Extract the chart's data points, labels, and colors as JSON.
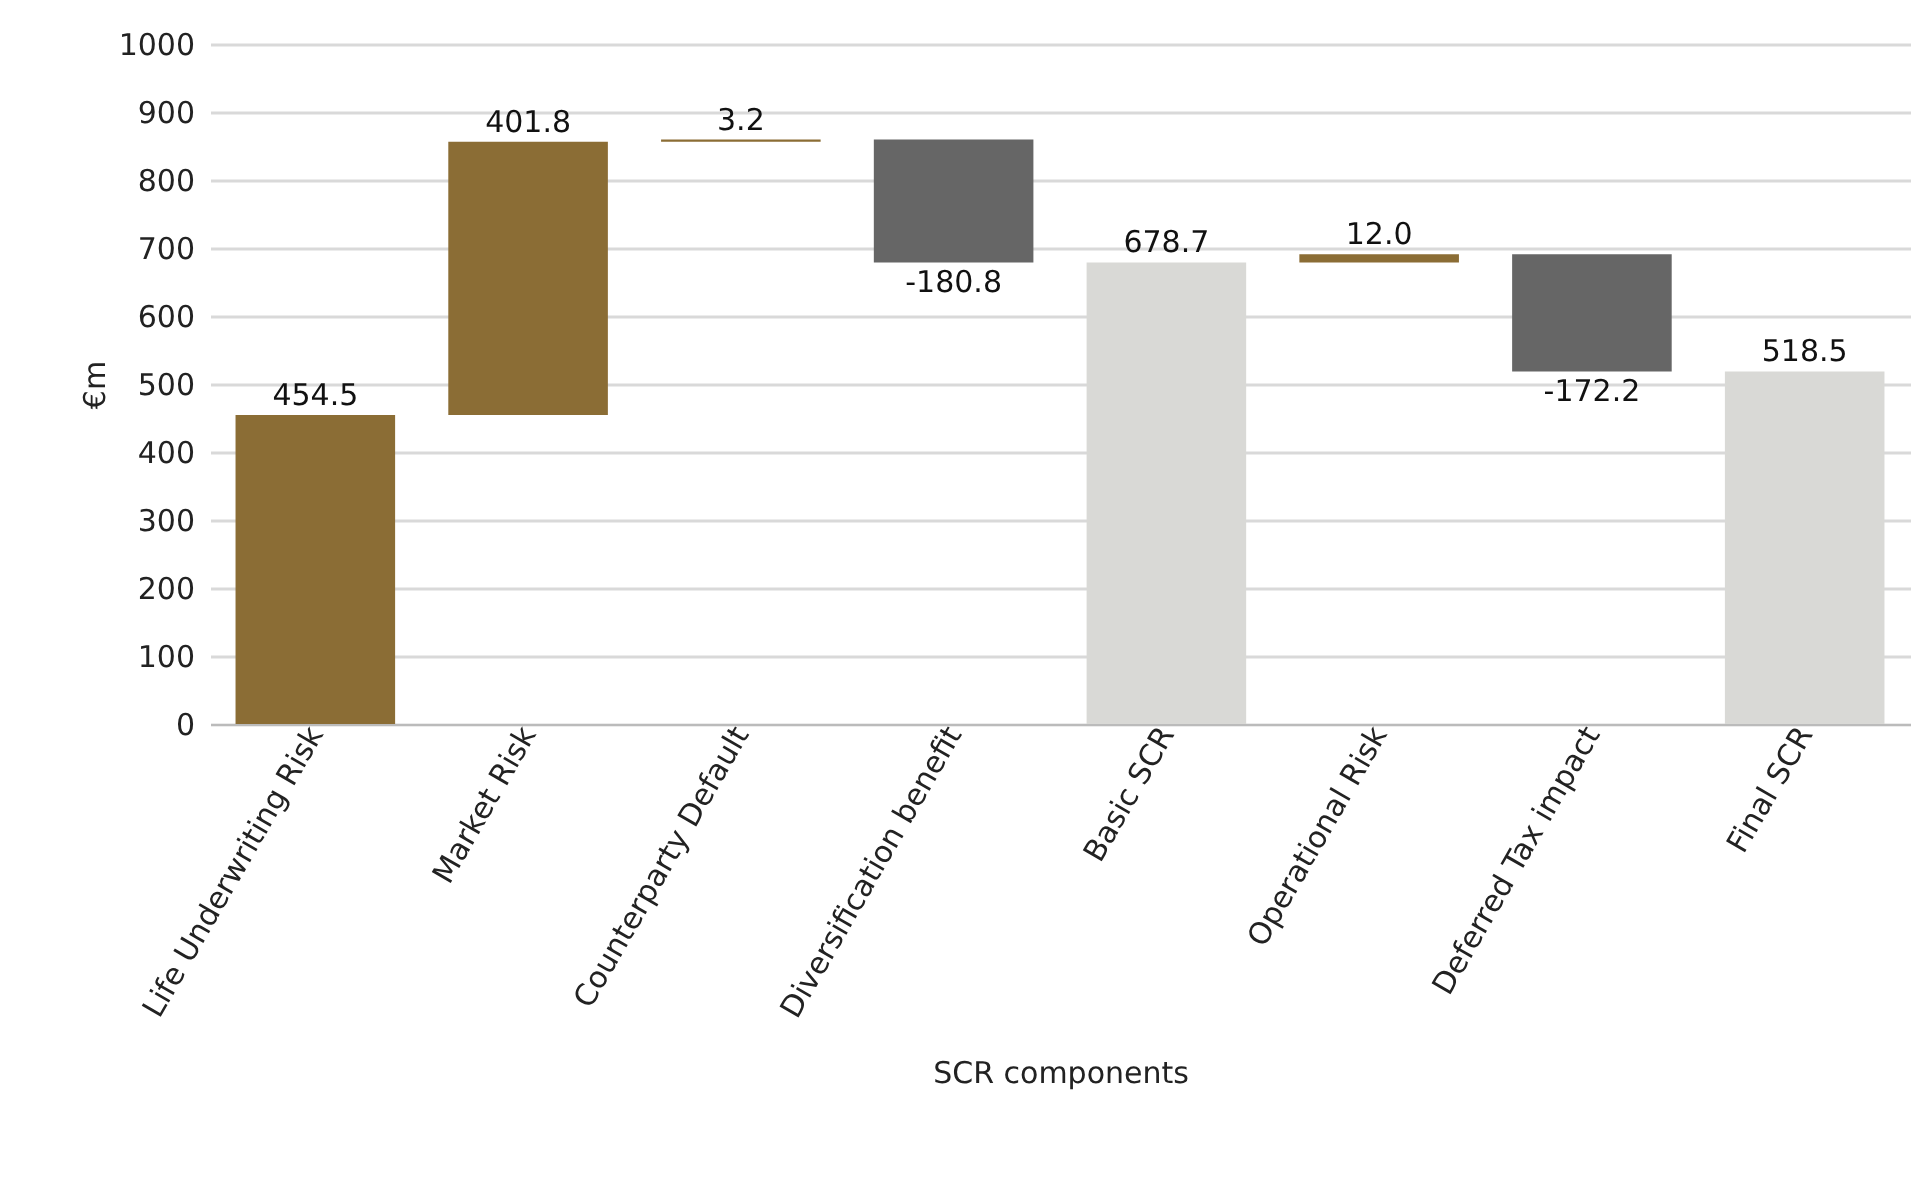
{
  "chart_data": {
    "type": "bar",
    "xlabel": "SCR components",
    "ylabel": "€m",
    "categories": [
      "Life Underwriting Risk",
      "Market Risk",
      "Counterparty Default",
      "Diversification benefit",
      "Basic SCR",
      "Operational Risk",
      "Deferred Tax impact",
      "Final SCR"
    ],
    "values": [
      454.5,
      401.8,
      3.2,
      -180.8,
      678.7,
      12.0,
      -172.2,
      518.5
    ],
    "base": [
      0,
      454.5,
      856.3,
      859.5,
      0,
      678.7,
      690.7,
      0
    ],
    "colors": [
      "#8b6d35",
      "#8b6d35",
      "#8b6d35",
      "#666666",
      "#d9d9d6",
      "#8b6d35",
      "#666666",
      "#d9d9d6"
    ],
    "value_labels": [
      "454.5",
      "401.8",
      "3.2",
      "-180.8",
      "678.7",
      "12.0",
      "-172.2",
      "518.5"
    ],
    "ylim": [
      0,
      1000
    ],
    "yticks": [
      0,
      100,
      200,
      300,
      400,
      500,
      600,
      700,
      800,
      900,
      1000
    ],
    "grid": "y"
  }
}
